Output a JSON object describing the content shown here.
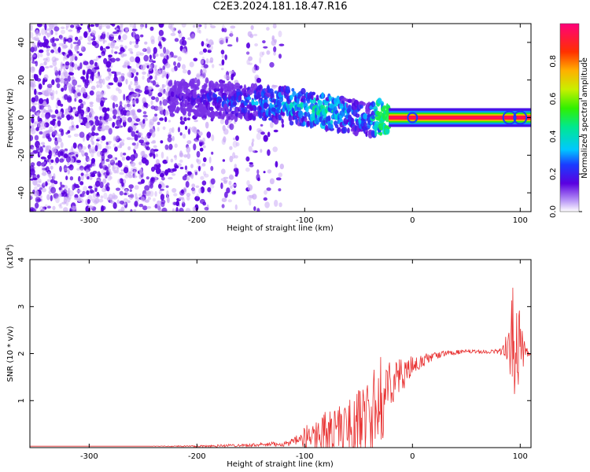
{
  "figure_title": "C2E3.2024.181.18.47.R16",
  "colors": {
    "spectral_dark": "#5a00e0",
    "spectral_light": "#c9a8f5",
    "snr_line": "#e83030",
    "frame": "#000000"
  },
  "chart_data": [
    {
      "type": "heatmap",
      "xlabel": "Height of straight line (km)",
      "ylabel": "Frequency (Hz)",
      "xlim": [
        -355,
        110
      ],
      "ylim": [
        -50,
        50
      ],
      "xticks": [
        -300,
        -200,
        -100,
        0,
        100
      ],
      "yticks": [
        -40,
        -20,
        0,
        20,
        40
      ],
      "ytick_labels": [
        "-40",
        "-20",
        "0",
        "20",
        "40"
      ],
      "grid": false,
      "colorbar": {
        "label": "Normalized spectral amplitude",
        "range": [
          0.0,
          1.0
        ],
        "ticks": [
          0.0,
          0.2,
          0.4,
          0.6,
          0.8
        ],
        "tick_labels": [
          "0.0",
          "0.2",
          "0.4",
          "0.6",
          "0.8"
        ],
        "colormap": "rainbow"
      },
      "ridge": {
        "x": [
          -225,
          -200,
          -175,
          -150,
          -125,
          -100,
          -80,
          -60,
          -40,
          -30,
          -20,
          0,
          20,
          40,
          60,
          80,
          90,
          100,
          110
        ],
        "y": [
          11,
          10,
          9,
          8,
          7,
          5,
          3,
          1,
          -1,
          0,
          0,
          0,
          0,
          0,
          0,
          0,
          0,
          0,
          0
        ],
        "amplitude": [
          0.15,
          0.2,
          0.25,
          0.3,
          0.35,
          0.4,
          0.45,
          0.35,
          0.3,
          0.6,
          0.95,
          0.95,
          0.95,
          0.95,
          0.95,
          0.95,
          0.7,
          0.95,
          0.95
        ]
      }
    },
    {
      "type": "line",
      "xlabel": "Height of straight line (km)",
      "ylabel": "SNR (10 * v/v)",
      "scale_label": "(x10",
      "scale_exponent": "4",
      "scale_close": ")",
      "xlim": [
        -355,
        110
      ],
      "ylim": [
        0,
        40000
      ],
      "xticks": [
        -300,
        -200,
        -100,
        0,
        100
      ],
      "yticks": [
        10000,
        20000,
        30000,
        40000
      ],
      "ytick_labels": [
        "1",
        "2",
        "3",
        "4"
      ],
      "grid": false,
      "series": [
        {
          "x": [
            -355,
            -300,
            -250,
            -200,
            -180,
            -160,
            -140,
            -120,
            -110,
            -100,
            -90,
            -80,
            -70,
            -60,
            -50,
            -40,
            -35,
            -30,
            -25,
            -20,
            -10,
            0,
            10,
            20,
            30,
            40,
            50,
            60,
            70,
            80,
            85,
            90,
            95,
            100,
            105,
            110
          ],
          "y": [
            300,
            300,
            300,
            300,
            400,
            500,
            600,
            800,
            1200,
            2000,
            3000,
            3500,
            4000,
            4500,
            5500,
            7000,
            7500,
            8500,
            12000,
            14000,
            15500,
            17000,
            18500,
            19500,
            20000,
            20300,
            20400,
            20400,
            20400,
            20500,
            20700,
            21000,
            22000,
            21000,
            20500,
            20200
          ],
          "noise": [
            0,
            0,
            0,
            200,
            300,
            300,
            400,
            600,
            800,
            2500,
            3500,
            4500,
            5000,
            5500,
            7000,
            9000,
            10000,
            11000,
            7000,
            5000,
            3500,
            2500,
            1500,
            800,
            600,
            500,
            400,
            400,
            400,
            600,
            1200,
            8000,
            16000,
            8000,
            1500,
            400
          ]
        }
      ]
    }
  ]
}
